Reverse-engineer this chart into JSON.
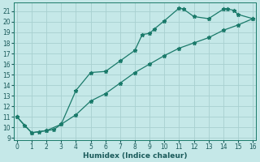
{
  "title": "",
  "xlabel": "Humidex (Indice chaleur)",
  "bg_color": "#c5e8e8",
  "grid_color": "#a8d0d0",
  "line_color": "#1a7a6a",
  "spine_color": "#1a7a6a",
  "tick_color": "#1a5a5a",
  "xlim": [
    -0.2,
    16.2
  ],
  "ylim": [
    8.8,
    21.8
  ],
  "yticks": [
    9,
    10,
    11,
    12,
    13,
    14,
    15,
    16,
    17,
    18,
    19,
    20,
    21
  ],
  "xticks": [
    0,
    1,
    2,
    3,
    4,
    5,
    6,
    7,
    8,
    9,
    10,
    11,
    12,
    13,
    14,
    15,
    16
  ],
  "curve1_x": [
    0,
    0.5,
    1,
    1.5,
    2,
    2.5,
    3,
    4,
    5,
    6,
    7,
    8,
    8.5,
    9,
    9.3,
    10,
    11,
    11.3,
    12,
    13,
    14,
    14.3,
    14.7,
    15,
    16
  ],
  "curve1_y": [
    11.0,
    10.2,
    9.5,
    9.6,
    9.7,
    9.8,
    10.3,
    13.5,
    15.2,
    15.3,
    16.3,
    17.3,
    18.8,
    18.9,
    19.3,
    20.1,
    21.3,
    21.2,
    20.5,
    20.3,
    21.2,
    21.2,
    21.1,
    20.7,
    20.3
  ],
  "curve2_x": [
    0,
    1,
    2,
    3,
    4,
    5,
    6,
    7,
    8,
    9,
    10,
    11,
    12,
    13,
    14,
    15,
    16
  ],
  "curve2_y": [
    11.0,
    9.5,
    9.7,
    10.3,
    11.2,
    12.5,
    13.2,
    14.2,
    15.2,
    16.0,
    16.8,
    17.5,
    18.0,
    18.5,
    19.2,
    19.7,
    20.3
  ],
  "marker": "*",
  "marker_size": 3.5,
  "linewidth": 0.9,
  "tick_labelsize": 5.5,
  "xlabel_fontsize": 6.5,
  "xlabel_fontweight": "bold"
}
